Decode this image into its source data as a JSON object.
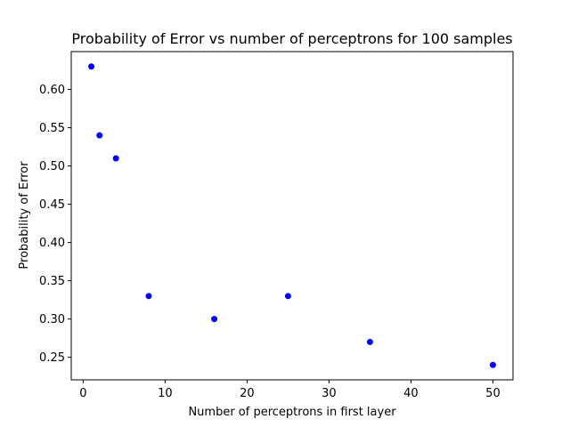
{
  "chart_data": {
    "type": "scatter",
    "title": "Probability of Error vs number of perceptrons for 100 samples",
    "xlabel": "Number of perceptrons in first layer",
    "ylabel": "Probability of Error",
    "xlim": [
      -1.45,
      52.45
    ],
    "ylim": [
      0.2205,
      0.6495
    ],
    "xticks": [
      0,
      10,
      20,
      30,
      40,
      50
    ],
    "xtick_labels": [
      "0",
      "10",
      "20",
      "30",
      "40",
      "50"
    ],
    "yticks": [
      0.25,
      0.3,
      0.35,
      0.4,
      0.45,
      0.5,
      0.55,
      0.6
    ],
    "ytick_labels": [
      "0.25",
      "0.30",
      "0.35",
      "0.40",
      "0.45",
      "0.50",
      "0.55",
      "0.60"
    ],
    "grid": false,
    "marker_color": "#0000ff",
    "x": [
      1,
      2,
      4,
      8,
      16,
      25,
      35,
      50
    ],
    "y": [
      0.63,
      0.54,
      0.51,
      0.33,
      0.3,
      0.33,
      0.27,
      0.24
    ]
  }
}
